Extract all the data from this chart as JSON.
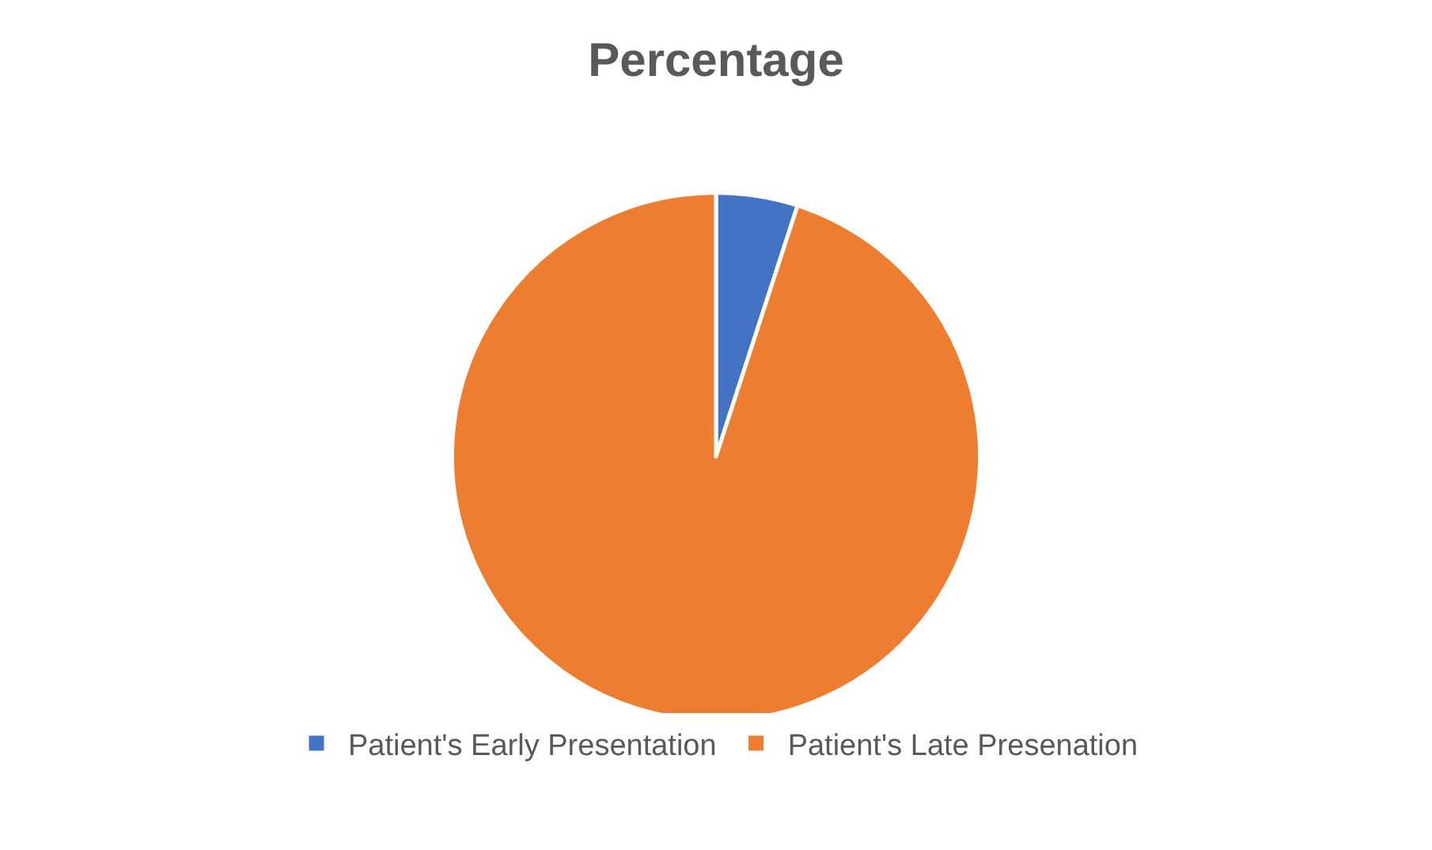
{
  "chart_data": {
    "type": "pie",
    "title": "Percentage",
    "categories": [
      "Patient's Early Presentation",
      "Patient's Late Presenation"
    ],
    "values": [
      5,
      95
    ],
    "colors": [
      "#4472c4",
      "#ed7d31"
    ],
    "legend": "bottom"
  }
}
